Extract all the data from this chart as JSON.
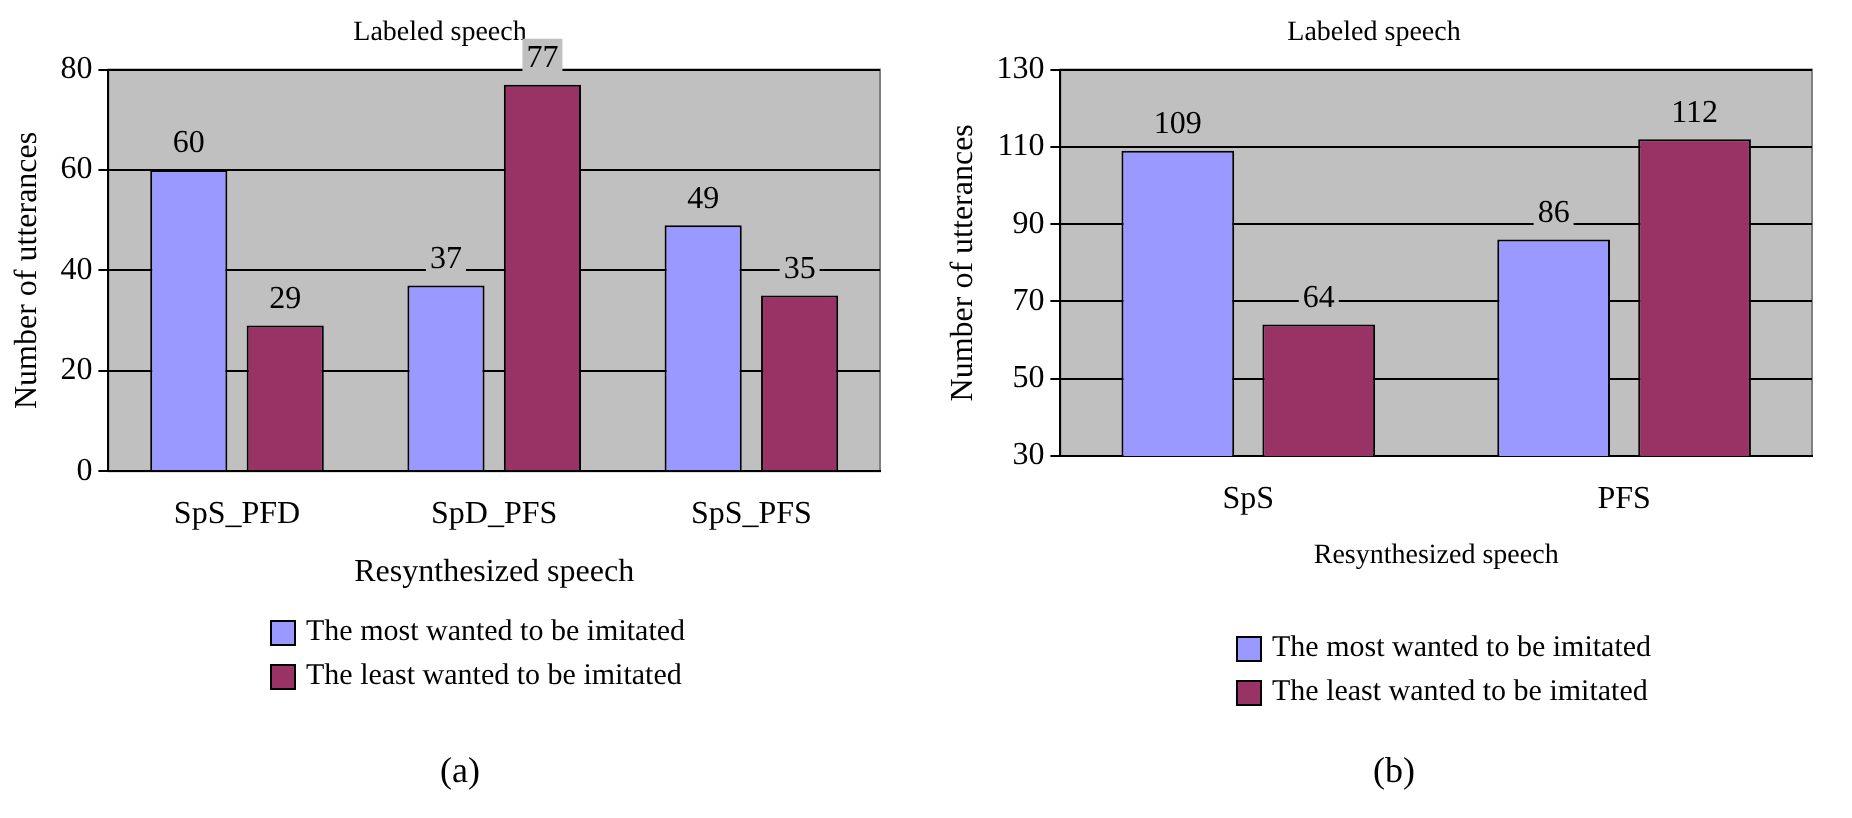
{
  "chart_data": [
    {
      "type": "bar",
      "title": "Labeled speech",
      "xlabel": "Resynthesized speech",
      "ylabel": "Number of utterances",
      "categories": [
        "SpS_PFD",
        "SpD_PFS",
        "SpS_PFS"
      ],
      "series": [
        {
          "name": "The most wanted to be imitated",
          "color": "#9999ff",
          "values": [
            60,
            37,
            49
          ]
        },
        {
          "name": "The least wanted to be imitated",
          "color": "#993366",
          "values": [
            29,
            77,
            35
          ]
        }
      ],
      "ylim": [
        0,
        80
      ],
      "yticks": [
        0,
        20,
        40,
        60,
        80
      ],
      "grid": "y",
      "legend": "bottom",
      "data_labels": true,
      "annotations": [
        "(a)"
      ]
    },
    {
      "type": "bar",
      "title": "Labeled speech",
      "xlabel": "Resynthesized speech",
      "ylabel": "Number of utterances",
      "categories": [
        "SpS",
        "PFS"
      ],
      "series": [
        {
          "name": "The most wanted to be imitated",
          "color": "#9999ff",
          "values": [
            109,
            86
          ]
        },
        {
          "name": "The least wanted to be imitated",
          "color": "#993366",
          "values": [
            64,
            112
          ]
        }
      ],
      "ylim": [
        30,
        130
      ],
      "yticks": [
        30,
        50,
        70,
        90,
        110,
        130
      ],
      "grid": "y",
      "legend": "bottom",
      "data_labels": true,
      "annotations": [
        "(b)"
      ]
    }
  ]
}
